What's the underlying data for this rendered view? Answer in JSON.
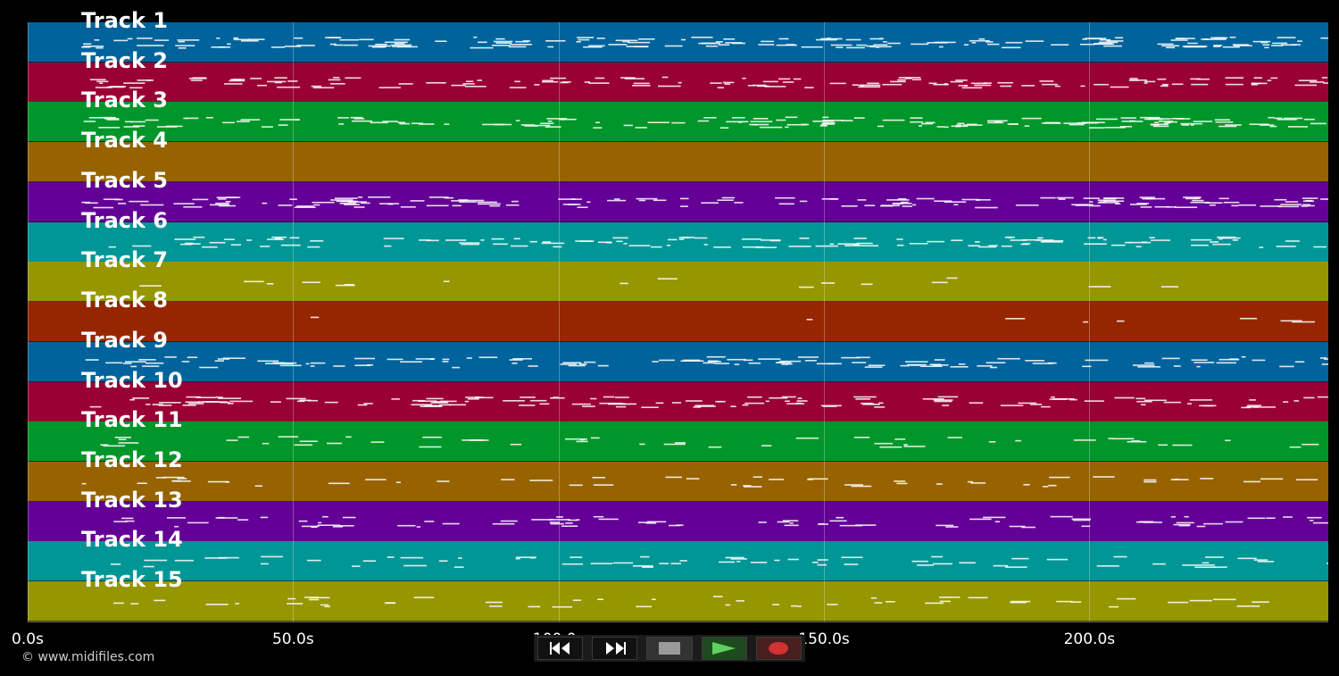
{
  "tracks": [
    {
      "label": "Track 1",
      "color": "#00639b",
      "density": 1.0
    },
    {
      "label": "Track 2",
      "color": "#990033",
      "density": 0.8
    },
    {
      "label": "Track 3",
      "color": "#009629",
      "density": 0.9
    },
    {
      "label": "Track 4",
      "color": "#966300",
      "density": 0.0
    },
    {
      "label": "Track 5",
      "color": "#630096",
      "density": 0.9
    },
    {
      "label": "Track 6",
      "color": "#009696",
      "density": 0.7
    },
    {
      "label": "Track 7",
      "color": "#969600",
      "density": 0.1
    },
    {
      "label": "Track 8",
      "color": "#962600",
      "density": 0.05
    },
    {
      "label": "Track 9",
      "color": "#00639b",
      "density": 0.7
    },
    {
      "label": "Track 10",
      "color": "#990033",
      "density": 0.8
    },
    {
      "label": "Track 11",
      "color": "#009629",
      "density": 0.3
    },
    {
      "label": "Track 12",
      "color": "#966300",
      "density": 0.3
    },
    {
      "label": "Track 13",
      "color": "#630096",
      "density": 0.5
    },
    {
      "label": "Track 14",
      "color": "#009696",
      "density": 0.4
    },
    {
      "label": "Track 15",
      "color": "#969600",
      "density": 0.3
    }
  ],
  "timeline": {
    "start_s": 0,
    "end_s": 245,
    "ticks": [
      "0.0s",
      "50.0s",
      "100.0s",
      "150.0s",
      "200.0s"
    ],
    "tick_values": [
      0,
      50,
      100,
      150,
      200
    ]
  },
  "copyright": "© www.midifiles.com",
  "transport": {
    "rewind": "rewind-icon",
    "fast_forward": "fast-forward-icon",
    "stop": "stop-icon",
    "play": "play-icon",
    "record": "record-icon"
  }
}
